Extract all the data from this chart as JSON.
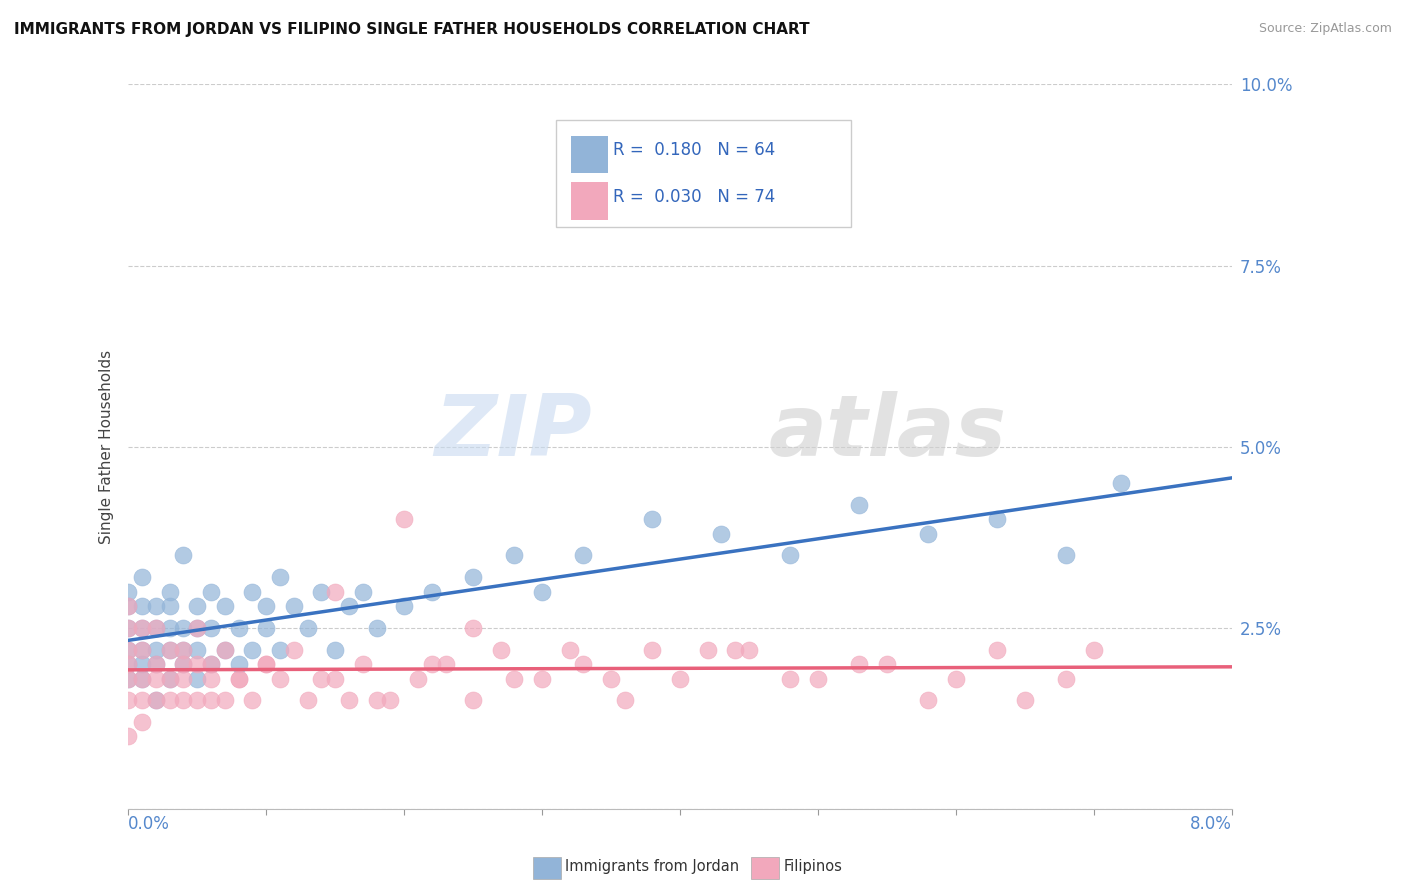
{
  "title": "IMMIGRANTS FROM JORDAN VS FILIPINO SINGLE FATHER HOUSEHOLDS CORRELATION CHART",
  "source": "Source: ZipAtlas.com",
  "ylabel": "Single Father Households",
  "legend_label1": "Immigrants from Jordan",
  "legend_label2": "Filipinos",
  "r1": 0.18,
  "n1": 64,
  "r2": 0.03,
  "n2": 74,
  "color_blue": "#92b4d8",
  "color_pink": "#f2a8bc",
  "line_blue": "#3a72c0",
  "line_pink": "#e8607a",
  "background": "#ffffff",
  "xlim": [
    0.0,
    0.08
  ],
  "ylim": [
    0.0,
    0.1
  ],
  "ytick_positions": [
    0.0,
    0.025,
    0.05,
    0.075,
    0.1
  ],
  "ytick_labels": [
    "",
    "2.5%",
    "5.0%",
    "7.5%",
    "10.0%"
  ],
  "xtick_left_label": "0.0%",
  "xtick_right_label": "8.0%",
  "jordan_x": [
    0.0,
    0.0,
    0.0,
    0.0,
    0.0,
    0.0,
    0.001,
    0.001,
    0.001,
    0.001,
    0.001,
    0.001,
    0.002,
    0.002,
    0.002,
    0.002,
    0.002,
    0.003,
    0.003,
    0.003,
    0.003,
    0.003,
    0.004,
    0.004,
    0.004,
    0.004,
    0.005,
    0.005,
    0.005,
    0.005,
    0.006,
    0.006,
    0.006,
    0.007,
    0.007,
    0.008,
    0.008,
    0.009,
    0.009,
    0.01,
    0.01,
    0.011,
    0.011,
    0.012,
    0.013,
    0.014,
    0.015,
    0.016,
    0.017,
    0.018,
    0.02,
    0.022,
    0.025,
    0.028,
    0.03,
    0.033,
    0.038,
    0.043,
    0.048,
    0.053,
    0.058,
    0.063,
    0.068,
    0.072
  ],
  "jordan_y": [
    0.022,
    0.025,
    0.018,
    0.02,
    0.028,
    0.03,
    0.018,
    0.022,
    0.025,
    0.02,
    0.028,
    0.032,
    0.02,
    0.022,
    0.025,
    0.028,
    0.015,
    0.018,
    0.022,
    0.028,
    0.025,
    0.03,
    0.02,
    0.022,
    0.025,
    0.035,
    0.018,
    0.022,
    0.025,
    0.028,
    0.02,
    0.025,
    0.03,
    0.022,
    0.028,
    0.02,
    0.025,
    0.022,
    0.03,
    0.025,
    0.028,
    0.022,
    0.032,
    0.028,
    0.025,
    0.03,
    0.022,
    0.028,
    0.03,
    0.025,
    0.028,
    0.03,
    0.032,
    0.035,
    0.03,
    0.035,
    0.04,
    0.038,
    0.035,
    0.042,
    0.038,
    0.04,
    0.035,
    0.045
  ],
  "filipino_x": [
    0.0,
    0.0,
    0.0,
    0.0,
    0.0,
    0.0,
    0.0,
    0.001,
    0.001,
    0.001,
    0.001,
    0.001,
    0.002,
    0.002,
    0.002,
    0.002,
    0.003,
    0.003,
    0.003,
    0.004,
    0.004,
    0.004,
    0.005,
    0.005,
    0.005,
    0.006,
    0.006,
    0.007,
    0.007,
    0.008,
    0.009,
    0.01,
    0.011,
    0.012,
    0.013,
    0.015,
    0.017,
    0.019,
    0.021,
    0.023,
    0.025,
    0.027,
    0.03,
    0.033,
    0.036,
    0.04,
    0.044,
    0.048,
    0.053,
    0.058,
    0.032,
    0.028,
    0.022,
    0.018,
    0.014,
    0.01,
    0.045,
    0.05,
    0.055,
    0.06,
    0.065,
    0.07,
    0.02,
    0.038,
    0.015,
    0.025,
    0.035,
    0.042,
    0.016,
    0.008,
    0.006,
    0.004,
    0.063,
    0.068
  ],
  "filipino_y": [
    0.018,
    0.022,
    0.015,
    0.025,
    0.02,
    0.01,
    0.028,
    0.015,
    0.018,
    0.022,
    0.025,
    0.012,
    0.018,
    0.02,
    0.025,
    0.015,
    0.018,
    0.022,
    0.015,
    0.018,
    0.022,
    0.015,
    0.02,
    0.015,
    0.025,
    0.018,
    0.02,
    0.015,
    0.022,
    0.018,
    0.015,
    0.02,
    0.018,
    0.022,
    0.015,
    0.018,
    0.02,
    0.015,
    0.018,
    0.02,
    0.015,
    0.022,
    0.018,
    0.02,
    0.015,
    0.018,
    0.022,
    0.018,
    0.02,
    0.015,
    0.022,
    0.018,
    0.02,
    0.015,
    0.018,
    0.02,
    0.022,
    0.018,
    0.02,
    0.018,
    0.015,
    0.022,
    0.04,
    0.022,
    0.03,
    0.025,
    0.018,
    0.022,
    0.015,
    0.018,
    0.015,
    0.02,
    0.022,
    0.018
  ]
}
